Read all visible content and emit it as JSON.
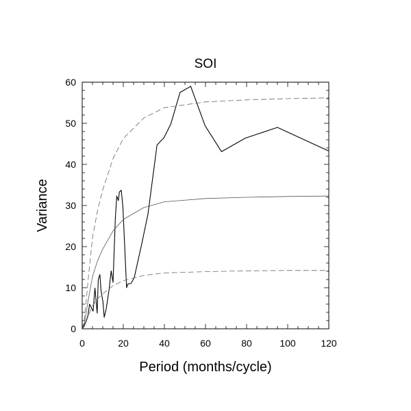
{
  "chart_data": {
    "type": "line",
    "title": "SOI",
    "xlabel": "Period (months/cycle)",
    "ylabel": "Variance",
    "xlim": [
      0,
      120
    ],
    "ylim": [
      0,
      60
    ],
    "xticks": [
      0,
      20,
      40,
      60,
      80,
      100,
      120
    ],
    "yticks": [
      0,
      10,
      20,
      30,
      40,
      50,
      60
    ],
    "grid": false,
    "series": [
      {
        "style": "solid-thick",
        "color": "#000000",
        "x": [
          0,
          1.7,
          2.8,
          3.6,
          5.3,
          6.2,
          7.3,
          7.8,
          8.6,
          9.2,
          10.1,
          10.7,
          11.7,
          13.1,
          14.1,
          15.0,
          16.1,
          16.8,
          17.6,
          18.1,
          19.0,
          19.8,
          21.6,
          22.2,
          23.7,
          25.3,
          28.9,
          32.0,
          36.4,
          39.8,
          43.1,
          47.6,
          52.8,
          59.8,
          67.8,
          79.4,
          95.0,
          119.8
        ],
        "y": [
          0,
          1.6,
          3.2,
          6.0,
          4.3,
          9.9,
          3.8,
          11.9,
          13.2,
          9.1,
          6.6,
          2.8,
          4.9,
          9.6,
          14.1,
          11.3,
          26.6,
          32.3,
          31.2,
          33.3,
          33.7,
          29.7,
          10.0,
          10.9,
          11.0,
          12.4,
          20.5,
          27.9,
          44.7,
          46.5,
          49.8,
          57.5,
          59.0,
          49.4,
          43.1,
          46.4,
          49.0,
          43.3
        ]
      },
      {
        "style": "solid-thin",
        "color": "#555555",
        "x": [
          0,
          1,
          2,
          3,
          5,
          7.5,
          10,
          15,
          20,
          30,
          40,
          60,
          80,
          100,
          120
        ],
        "y": [
          0,
          1.2,
          4.0,
          7.2,
          12.7,
          16.6,
          19.4,
          23.8,
          26.6,
          29.5,
          30.9,
          31.7,
          32.0,
          32.2,
          32.3
        ]
      },
      {
        "style": "dashed",
        "color": "#666666",
        "x": [
          0,
          1,
          2,
          3,
          5,
          7.5,
          10,
          15,
          20,
          30,
          40,
          60,
          80,
          100,
          120
        ],
        "y": [
          0,
          2.1,
          7.0,
          12.5,
          22.1,
          28.9,
          33.8,
          41.4,
          46.3,
          51.3,
          53.8,
          55.2,
          55.7,
          56.0,
          56.2
        ]
      },
      {
        "style": "dashed",
        "color": "#666666",
        "x": [
          0,
          1,
          2,
          3,
          5,
          7.5,
          10,
          15,
          20,
          30,
          40,
          60,
          80,
          100,
          120
        ],
        "y": [
          0,
          0.5,
          1.8,
          3.2,
          5.6,
          7.3,
          8.5,
          10.5,
          11.7,
          13.0,
          13.6,
          13.9,
          14.1,
          14.2,
          14.2
        ]
      }
    ]
  }
}
